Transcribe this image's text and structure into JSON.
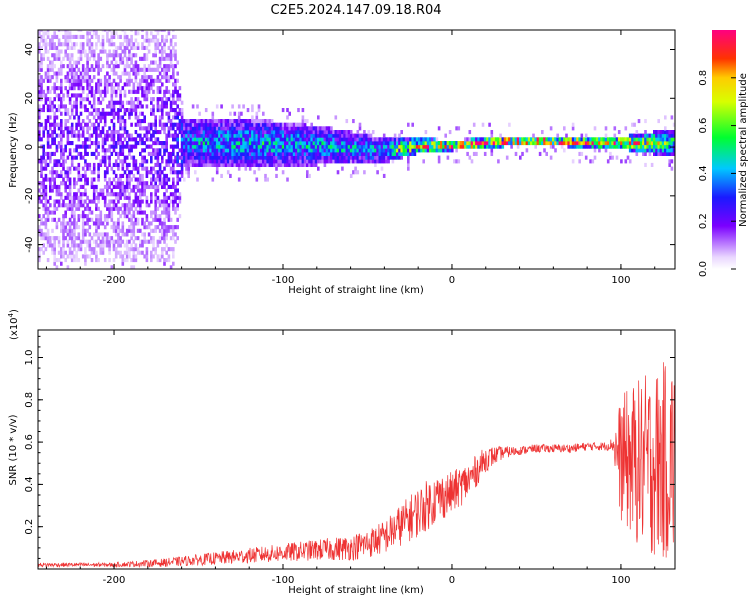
{
  "title": "C2E5.2024.147.09.18.R04",
  "colors": {
    "snr_line": "#ee3333",
    "axis": "#000000"
  },
  "chart_data": [
    {
      "type": "heatmap",
      "xlabel": "Height of straight line (km)",
      "ylabel": "Frequency (Hz)",
      "xlim": [
        -245,
        132
      ],
      "ylim": [
        -50,
        48
      ],
      "x_ticks": [
        -200,
        -100,
        0,
        100
      ],
      "y_ticks": [
        -40,
        -20,
        0,
        20,
        40
      ],
      "x_tick_labels": [
        "-200",
        "-100",
        "0",
        "100"
      ],
      "y_tick_labels": [
        "-40",
        "-20",
        "0",
        "20",
        "40"
      ],
      "colorbar": {
        "label": "Normalized spectral amplitude",
        "range": [
          0,
          1
        ],
        "ticks": [
          0.0,
          0.2,
          0.4,
          0.6,
          0.8
        ],
        "tick_labels": [
          "0.0",
          "0.2",
          "0.4",
          "0.6",
          "0.8"
        ],
        "colormap": "rainbow (purple to magenta)"
      },
      "band_profile": [
        {
          "x": -245,
          "center_hz": 0,
          "half_width_hz": 48,
          "peak_amplitude": 0.2
        },
        {
          "x": -165,
          "center_hz": 0,
          "half_width_hz": 48,
          "peak_amplitude": 0.22
        },
        {
          "x": -160,
          "center_hz": 1,
          "half_width_hz": 10,
          "peak_amplitude": 0.4
        },
        {
          "x": -120,
          "center_hz": 1,
          "half_width_hz": 10,
          "peak_amplitude": 0.45
        },
        {
          "x": -80,
          "center_hz": 0,
          "half_width_hz": 8,
          "peak_amplitude": 0.45
        },
        {
          "x": -40,
          "center_hz": -2,
          "half_width_hz": 5,
          "peak_amplitude": 0.45
        },
        {
          "x": -20,
          "center_hz": 0,
          "half_width_hz": 3,
          "peak_amplitude": 0.85
        },
        {
          "x": 0,
          "center_hz": 0,
          "half_width_hz": 2,
          "peak_amplitude": 0.95
        },
        {
          "x": 40,
          "center_hz": 2,
          "half_width_hz": 2,
          "peak_amplitude": 1.0
        },
        {
          "x": 95,
          "center_hz": 1,
          "half_width_hz": 2,
          "peak_amplitude": 0.95
        },
        {
          "x": 132,
          "center_hz": 1,
          "half_width_hz": 6,
          "peak_amplitude": 0.5
        }
      ]
    },
    {
      "type": "line",
      "xlabel": "Height of straight line (km)",
      "ylabel": "SNR (10 * v/v)",
      "y_multiplier_label": "(x10",
      "y_multiplier_exp": "4",
      "xlim": [
        -245,
        132
      ],
      "ylim": [
        0,
        1.13
      ],
      "x_ticks": [
        -200,
        -100,
        0,
        100
      ],
      "y_ticks": [
        0.2,
        0.4,
        0.6,
        0.8,
        1.0
      ],
      "x_tick_labels": [
        "-200",
        "-100",
        "0",
        "100"
      ],
      "y_tick_labels": [
        "0.2",
        "0.4",
        "0.6",
        "0.8",
        "1.0"
      ],
      "series": [
        {
          "x": [
            -245,
            -200,
            -170,
            -140,
            -110,
            -80,
            -60,
            -50,
            -40,
            -30,
            -20,
            -10,
            0,
            10,
            20,
            30,
            40,
            50,
            60,
            70,
            80,
            90,
            95,
            100,
            110,
            120,
            132
          ],
          "y": [
            0.02,
            0.02,
            0.03,
            0.05,
            0.07,
            0.09,
            0.1,
            0.12,
            0.15,
            0.21,
            0.27,
            0.33,
            0.36,
            0.42,
            0.52,
            0.55,
            0.56,
            0.57,
            0.57,
            0.57,
            0.58,
            0.58,
            0.59,
            0.52,
            0.5,
            0.5,
            0.52
          ],
          "noise_envelope": [
            0.01,
            0.01,
            0.02,
            0.03,
            0.04,
            0.05,
            0.06,
            0.07,
            0.08,
            0.1,
            0.12,
            0.12,
            0.1,
            0.09,
            0.06,
            0.03,
            0.02,
            0.02,
            0.02,
            0.02,
            0.02,
            0.02,
            0.03,
            0.3,
            0.4,
            0.45,
            0.5
          ]
        }
      ]
    }
  ]
}
